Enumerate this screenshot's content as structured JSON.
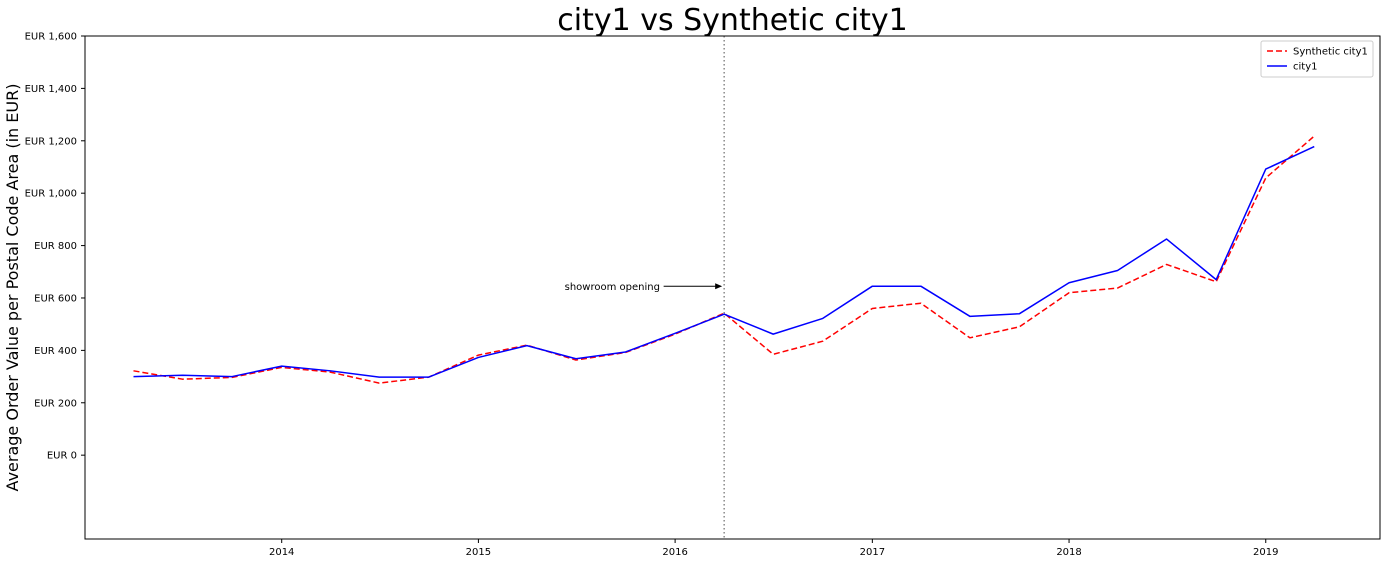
{
  "chart_data": {
    "type": "line",
    "title": "city1 vs Synthetic city1",
    "ylabel": "Average Order Value per Postal Code Area (in EUR)",
    "xlabel": "",
    "xlim": [
      "2013-01-01",
      "2019-08-01"
    ],
    "ylim": [
      -320,
      1600
    ],
    "x_ticks": [
      {
        "value": "2014-01-01",
        "label": "2014"
      },
      {
        "value": "2015-01-01",
        "label": "2015"
      },
      {
        "value": "2016-01-01",
        "label": "2016"
      },
      {
        "value": "2017-01-01",
        "label": "2017"
      },
      {
        "value": "2018-01-01",
        "label": "2018"
      },
      {
        "value": "2019-01-01",
        "label": "2019"
      }
    ],
    "y_ticks": [
      {
        "value": 0,
        "label": "EUR 0"
      },
      {
        "value": 200,
        "label": "EUR 200"
      },
      {
        "value": 400,
        "label": "EUR 400"
      },
      {
        "value": 600,
        "label": "EUR 600"
      },
      {
        "value": 800,
        "label": "EUR 800"
      },
      {
        "value": 1000,
        "label": "EUR 1,000"
      },
      {
        "value": 1200,
        "label": "EUR 1,200"
      },
      {
        "value": 1400,
        "label": "EUR 1,400"
      },
      {
        "value": 1600,
        "label": "EUR 1,600"
      }
    ],
    "x": [
      "2013-04-01",
      "2013-07-01",
      "2013-10-01",
      "2014-01-01",
      "2014-04-01",
      "2014-07-01",
      "2014-10-01",
      "2015-01-01",
      "2015-04-01",
      "2015-07-01",
      "2015-10-01",
      "2016-01-01",
      "2016-04-01",
      "2016-07-01",
      "2016-10-01",
      "2017-01-01",
      "2017-04-01",
      "2017-07-01",
      "2017-10-01",
      "2018-01-01",
      "2018-04-01",
      "2018-07-01",
      "2018-10-01",
      "2019-01-01",
      "2019-04-01"
    ],
    "series": [
      {
        "name": "Synthetic city1",
        "color": "#ff0000",
        "style": "dashed",
        "values": [
          322,
          290,
          297,
          335,
          317,
          275,
          298,
          382,
          420,
          363,
          392,
          462,
          542,
          385,
          435,
          560,
          580,
          448,
          490,
          620,
          638,
          728,
          662,
          1058,
          1218
        ]
      },
      {
        "name": "city1",
        "color": "#0000ff",
        "style": "solid",
        "values": [
          300,
          305,
          300,
          340,
          322,
          298,
          298,
          373,
          418,
          368,
          394,
          465,
          538,
          462,
          522,
          645,
          645,
          530,
          540,
          658,
          705,
          825,
          670,
          1092,
          1178
        ]
      }
    ],
    "vline": {
      "x": "2016-04-01",
      "color": "#777777",
      "style": "dotted"
    },
    "annotation": {
      "text": "showroom opening",
      "text_x": "2015-06-10",
      "text_y": 645,
      "arrow_x": "2016-04-01",
      "arrow_y": 645
    },
    "legend": {
      "position": "top-right",
      "entries": [
        "Synthetic city1",
        "city1"
      ]
    },
    "grid": false
  }
}
